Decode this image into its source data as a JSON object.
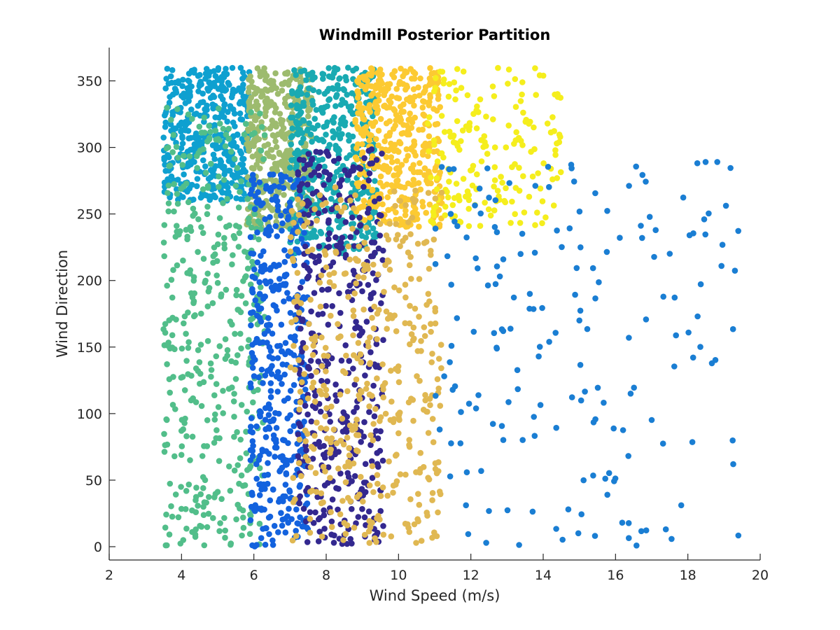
{
  "chart_data": {
    "type": "scatter",
    "title": "Windmill Posterior Partition",
    "xlabel": "Wind Speed (m/s)",
    "ylabel": "Wind Direction",
    "xlim": [
      2,
      20
    ],
    "ylim": [
      -10,
      375
    ],
    "xticks": [
      2,
      4,
      6,
      8,
      10,
      12,
      14,
      16,
      18,
      20
    ],
    "yticks": [
      0,
      50,
      100,
      150,
      200,
      250,
      300,
      350
    ],
    "grid": false,
    "legend": "none",
    "series": [
      {
        "color": "#0ea0d0",
        "region": {
          "x": [
            3.5,
            5.9
          ],
          "y": [
            260,
            360
          ]
        },
        "density": "dense"
      },
      {
        "color": "#9dbb6e",
        "region": {
          "x": [
            5.8,
            7.6
          ],
          "y": [
            240,
            360
          ]
        },
        "density": "dense"
      },
      {
        "color": "#19aab2",
        "region": {
          "x": [
            7.0,
            9.4
          ],
          "y": [
            220,
            360
          ]
        },
        "density": "dense"
      },
      {
        "color": "#fcca32",
        "region": {
          "x": [
            8.8,
            11.2
          ],
          "y": [
            240,
            360
          ]
        },
        "density": "dense"
      },
      {
        "color": "#f5ee1d",
        "region": {
          "x": [
            10.8,
            14.5
          ],
          "y": [
            240,
            360
          ]
        },
        "density": "medium"
      },
      {
        "color": "#52be8a",
        "region": {
          "x": [
            3.5,
            6.3
          ],
          "y": [
            0,
            330
          ]
        },
        "density": "dense"
      },
      {
        "color": "#1362de",
        "region": {
          "x": [
            5.9,
            7.5
          ],
          "y": [
            0,
            280
          ]
        },
        "density": "dense"
      },
      {
        "color": "#33288f",
        "region": {
          "x": [
            7.2,
            9.6
          ],
          "y": [
            0,
            300
          ]
        },
        "density": "dense"
      },
      {
        "color": "#e0b852",
        "region": {
          "x": [
            7.0,
            11.2
          ],
          "y": [
            0,
            270
          ]
        },
        "density": "dense"
      },
      {
        "color": "#1a7ed3",
        "region": {
          "x": [
            11.0,
            19.4
          ],
          "y": [
            0,
            290
          ]
        },
        "density": "medium"
      }
    ]
  }
}
